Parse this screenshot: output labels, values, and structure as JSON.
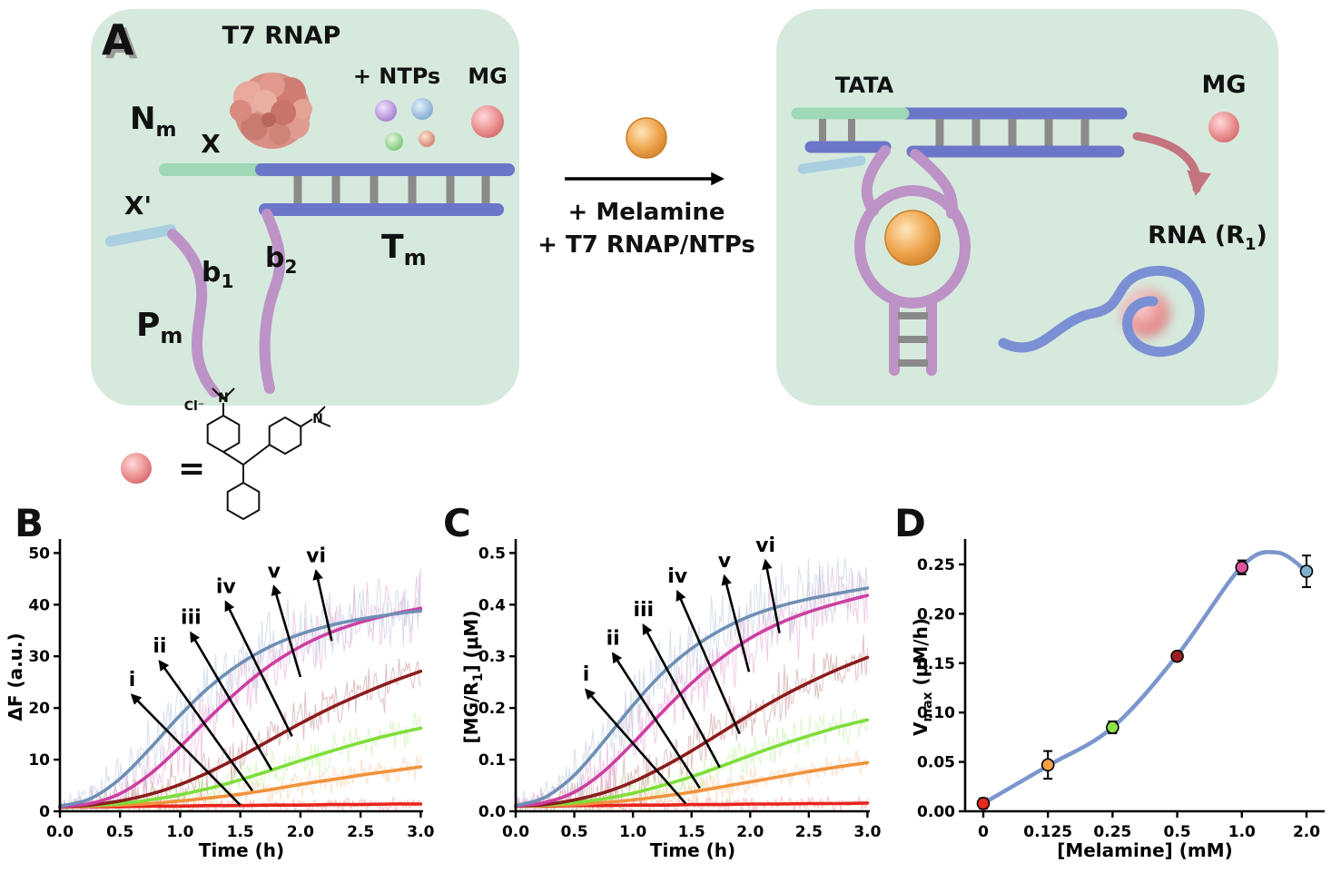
{
  "figure": {
    "letters": {
      "a": "A",
      "b": "B",
      "c": "C",
      "d": "D"
    }
  },
  "panel_a": {
    "t7_rnap": "T7 RNAP",
    "ntps": "+ NTPs",
    "mg_left": "MG",
    "nm": {
      "base": "N",
      "sub": "m"
    },
    "x_label": "X",
    "xprime_label": "X'",
    "b1": {
      "base": "b",
      "sub": "1"
    },
    "b2": {
      "base": "b",
      "sub": "2"
    },
    "pm": {
      "base": "P",
      "sub": "m"
    },
    "tm": {
      "base": "T",
      "sub": "m"
    },
    "arrow_line1": "+ Melamine",
    "arrow_line2": "+ T7 RNAP/NTPs",
    "tata": "TATA",
    "mg_right": "MG",
    "rna": {
      "prefix": "RNA (R",
      "sub": "1",
      "suffix": ")"
    },
    "equals": "=",
    "cl": "Cl⁻",
    "n1": "N",
    "n2": "N",
    "colors": {
      "box_fill": "#d6e9dd",
      "dna_purple": "#6b76c9",
      "strand_pink": "#bd92c6",
      "teal_segment": "#9ed8b6",
      "light_blue_rod": "#a9cfe0",
      "rung_gray": "#8a8a8a",
      "rna_blue": "#7b8fd4",
      "melamine_orange": "#e8953a",
      "mg_pink": "#e07878"
    }
  },
  "chart_data": [
    {
      "id": "chart-b",
      "panel": "B",
      "type": "line",
      "title": "",
      "xlabel": "Time (h)",
      "ylabel": "ΔF (a.u.)",
      "xlim": [
        0,
        3.02
      ],
      "ylim": [
        0,
        52
      ],
      "xticks": [
        0,
        0.5,
        1.0,
        1.5,
        2.0,
        2.5,
        3.0
      ],
      "xtick_labels": [
        "0.0",
        "0.5",
        "1.0",
        "1.5",
        "2.0",
        "2.5",
        "3.0"
      ],
      "yticks": [
        0,
        10,
        20,
        30,
        40,
        50
      ],
      "ytick_labels": [
        "0",
        "10",
        "20",
        "30",
        "40",
        "50"
      ],
      "x": [
        0,
        0.25,
        0.5,
        0.75,
        1.0,
        1.25,
        1.5,
        1.75,
        2.0,
        2.25,
        2.5,
        2.75,
        3.0
      ],
      "series": [
        {
          "name": "i",
          "color": "#e8241e",
          "noise": 0.9,
          "values": [
            0.8,
            0.9,
            0.9,
            1.0,
            1.0,
            1.1,
            1.1,
            1.2,
            1.2,
            1.3,
            1.3,
            1.4,
            1.4
          ]
        },
        {
          "name": "ii",
          "color": "#f0923c",
          "noise": 1.8,
          "values": [
            0.9,
            1.0,
            1.2,
            1.5,
            2.0,
            2.6,
            3.3,
            4.2,
            5.2,
            6.1,
            7.0,
            7.8,
            8.6
          ]
        },
        {
          "name": "iii",
          "color": "#7ede3a",
          "noise": 2.6,
          "values": [
            0.9,
            1.1,
            1.5,
            2.2,
            3.2,
            4.5,
            6.1,
            7.9,
            9.8,
            11.6,
            13.3,
            14.8,
            16.1
          ]
        },
        {
          "name": "iv",
          "color": "#8c1c1c",
          "noise": 3.4,
          "values": [
            0.9,
            1.2,
            2.0,
            3.3,
            5.2,
            7.7,
            10.6,
            13.8,
            17.0,
            20.0,
            22.6,
            25.0,
            27.1
          ]
        },
        {
          "name": "v",
          "color": "#cc3fa2",
          "noise": 5.0,
          "values": [
            0.9,
            1.5,
            3.4,
            7.2,
            12.5,
            18.3,
            23.7,
            28.3,
            31.9,
            34.6,
            36.6,
            38.1,
            39.3
          ]
        },
        {
          "name": "vi",
          "color": "#6e8fb5",
          "noise": 5.0,
          "values": [
            1.0,
            2.4,
            6.3,
            12.2,
            18.6,
            24.2,
            28.6,
            31.9,
            34.3,
            36.0,
            37.2,
            38.1,
            38.8
          ]
        }
      ],
      "arrows": [
        {
          "label": "i",
          "from": [
            1.5,
            1.2
          ],
          "to": [
            0.6,
            22.5
          ]
        },
        {
          "label": "ii",
          "from": [
            1.6,
            4.0
          ],
          "to": [
            0.83,
            29.0
          ]
        },
        {
          "label": "iii",
          "from": [
            1.76,
            8.0
          ],
          "to": [
            1.09,
            34.5
          ]
        },
        {
          "label": "iv",
          "from": [
            1.93,
            14.5
          ],
          "to": [
            1.38,
            40.5
          ]
        },
        {
          "label": "v",
          "from": [
            2.0,
            26.0
          ],
          "to": [
            1.78,
            43.5
          ]
        },
        {
          "label": "vi",
          "from": [
            2.26,
            33.0
          ],
          "to": [
            2.13,
            46.5
          ]
        }
      ]
    },
    {
      "id": "chart-c",
      "panel": "C",
      "type": "line",
      "title": "",
      "xlabel": "Time (h)",
      "ylabel_parts": {
        "prefix": "[MG/R",
        "sub": "1",
        "suffix": "] (μM)"
      },
      "xlim": [
        0,
        3.02
      ],
      "ylim": [
        0,
        0.52
      ],
      "xticks": [
        0,
        0.5,
        1.0,
        1.5,
        2.0,
        2.5,
        3.0
      ],
      "xtick_labels": [
        "0.0",
        "0.5",
        "1.0",
        "1.5",
        "2.0",
        "2.5",
        "3.0"
      ],
      "yticks": [
        0,
        0.1,
        0.2,
        0.3,
        0.4,
        0.5
      ],
      "ytick_labels": [
        "0.0",
        "0.1",
        "0.2",
        "0.3",
        "0.4",
        "0.5"
      ],
      "x": [
        0,
        0.25,
        0.5,
        0.75,
        1.0,
        1.25,
        1.5,
        1.75,
        2.0,
        2.25,
        2.5,
        2.75,
        3.0
      ],
      "series": [
        {
          "name": "i",
          "color": "#e8241e",
          "noise": 0.01,
          "values": [
            0.01,
            0.01,
            0.011,
            0.011,
            0.012,
            0.012,
            0.013,
            0.013,
            0.014,
            0.014,
            0.015,
            0.015,
            0.016
          ]
        },
        {
          "name": "ii",
          "color": "#f0923c",
          "noise": 0.02,
          "values": [
            0.01,
            0.011,
            0.013,
            0.017,
            0.022,
            0.029,
            0.037,
            0.047,
            0.057,
            0.067,
            0.077,
            0.086,
            0.094
          ]
        },
        {
          "name": "iii",
          "color": "#7ede3a",
          "noise": 0.028,
          "values": [
            0.01,
            0.012,
            0.017,
            0.024,
            0.035,
            0.05,
            0.067,
            0.087,
            0.108,
            0.128,
            0.146,
            0.163,
            0.177
          ]
        },
        {
          "name": "iv",
          "color": "#8c1c1c",
          "noise": 0.037,
          "values": [
            0.01,
            0.013,
            0.022,
            0.036,
            0.057,
            0.085,
            0.117,
            0.152,
            0.187,
            0.22,
            0.249,
            0.275,
            0.298
          ]
        },
        {
          "name": "v",
          "color": "#cc3fa2",
          "noise": 0.052,
          "values": [
            0.01,
            0.017,
            0.037,
            0.077,
            0.132,
            0.192,
            0.248,
            0.296,
            0.335,
            0.364,
            0.386,
            0.403,
            0.418
          ]
        },
        {
          "name": "vi",
          "color": "#6e8fb5",
          "noise": 0.052,
          "values": [
            0.011,
            0.027,
            0.07,
            0.135,
            0.205,
            0.267,
            0.315,
            0.351,
            0.378,
            0.397,
            0.411,
            0.422,
            0.432
          ]
        }
      ],
      "arrows": [
        {
          "label": "i",
          "from": [
            1.45,
            0.015
          ],
          "to": [
            0.6,
            0.235
          ]
        },
        {
          "label": "ii",
          "from": [
            1.57,
            0.045
          ],
          "to": [
            0.83,
            0.305
          ]
        },
        {
          "label": "iii",
          "from": [
            1.74,
            0.085
          ],
          "to": [
            1.09,
            0.36
          ]
        },
        {
          "label": "iv",
          "from": [
            1.91,
            0.15
          ],
          "to": [
            1.38,
            0.425
          ]
        },
        {
          "label": "v",
          "from": [
            1.99,
            0.27
          ],
          "to": [
            1.78,
            0.455
          ]
        },
        {
          "label": "vi",
          "from": [
            2.25,
            0.345
          ],
          "to": [
            2.13,
            0.485
          ]
        }
      ]
    },
    {
      "id": "chart-d",
      "panel": "D",
      "type": "dose",
      "title": "",
      "xlabel": "[Melamine] (mM)",
      "ylabel_parts": {
        "prefix": "V",
        "sub": "max",
        "suffix": " (μM/h)"
      },
      "categories": [
        "0",
        "0.125",
        "0.25",
        "0.5",
        "1.0",
        "2.0"
      ],
      "values": [
        0.008,
        0.047,
        0.085,
        0.157,
        0.247,
        0.243
      ],
      "errors": [
        0.005,
        0.014,
        0.006,
        0.004,
        0.007,
        0.016
      ],
      "point_colors": [
        "#e8281e",
        "#f0a048",
        "#8ce04a",
        "#9c1f1f",
        "#e0559d",
        "#7fb2c9"
      ],
      "curve_color": "#7b96cc",
      "curve_x": [
        0,
        1,
        2,
        3,
        4,
        4.55,
        5
      ],
      "curve_y": [
        0.008,
        0.046,
        0.085,
        0.158,
        0.248,
        0.262,
        0.243
      ],
      "ylim": [
        0,
        0.272
      ],
      "yticks": [
        0,
        0.05,
        0.1,
        0.15,
        0.2,
        0.25
      ],
      "ytick_labels": [
        "0.00",
        "0.05",
        "0.10",
        "0.15",
        "0.20",
        "0.25"
      ],
      "grid": false,
      "legend": "none"
    }
  ]
}
